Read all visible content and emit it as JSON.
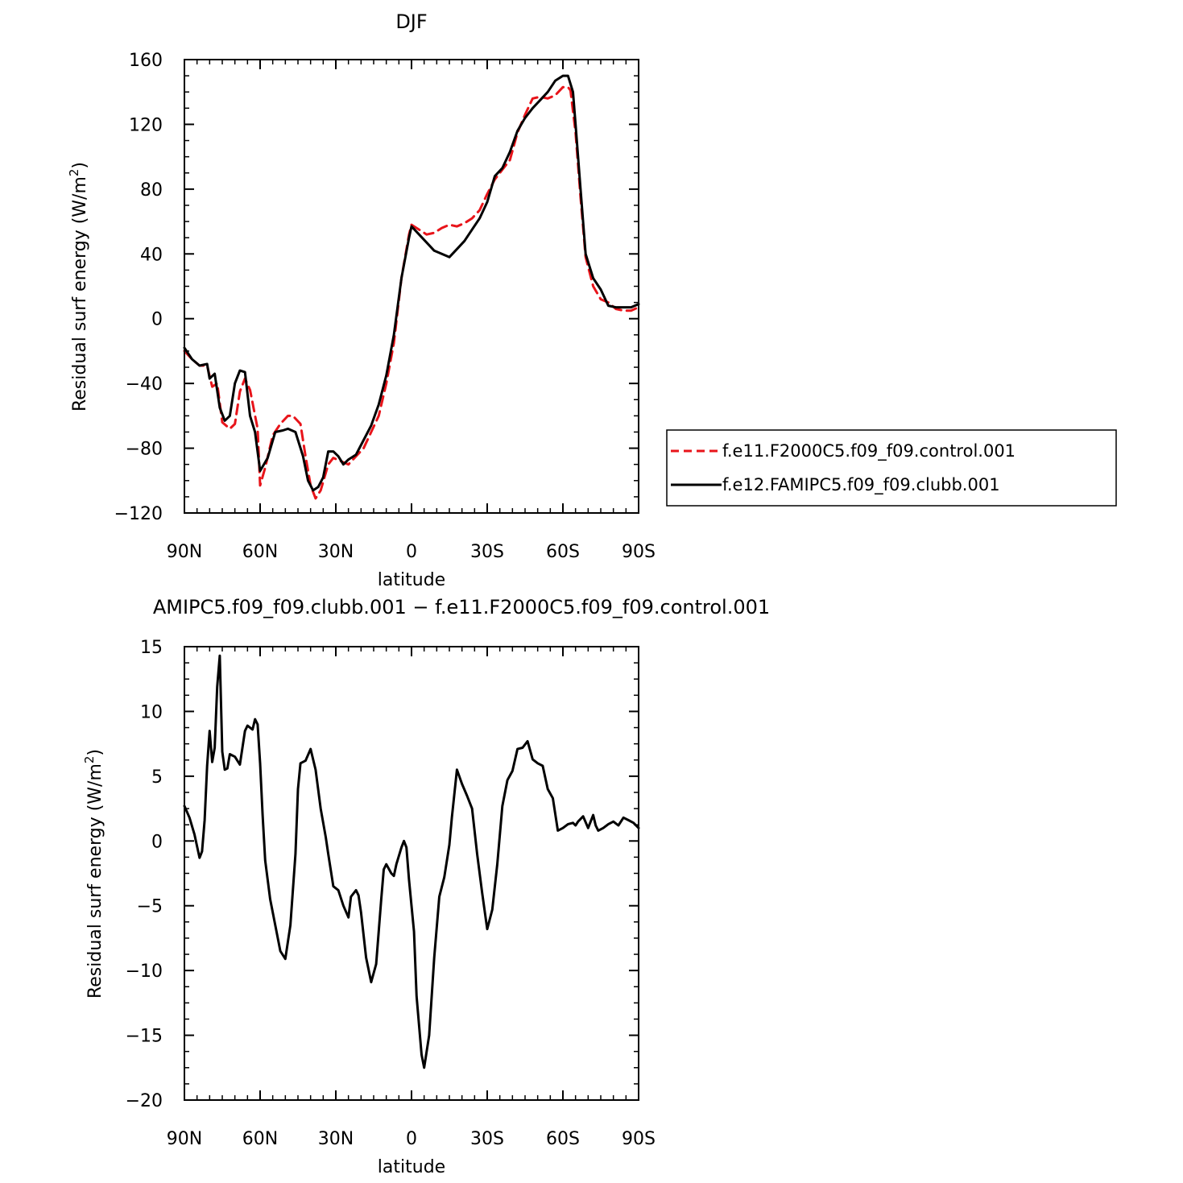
{
  "colors": {
    "control": "#e8141a",
    "clubb": "#000000"
  },
  "chart_data": [
    {
      "type": "line",
      "title": "DJF",
      "xlabel": "latitude",
      "ylabel": "Residual surf energy (W/m²)",
      "ylabel_main": "Residual surf energy (W/m",
      "ylabel_sup": "2",
      "ylabel_tail": ")",
      "xlim": [
        -90,
        90
      ],
      "ylim": [
        -120,
        160
      ],
      "xticks": [
        {
          "v": -90,
          "label": "90N"
        },
        {
          "v": -60,
          "label": "60N"
        },
        {
          "v": -30,
          "label": "30N"
        },
        {
          "v": 0,
          "label": "0"
        },
        {
          "v": 30,
          "label": "30S"
        },
        {
          "v": 60,
          "label": "60S"
        },
        {
          "v": 90,
          "label": "90S"
        }
      ],
      "yticks": [
        {
          "v": -120,
          "label": "−120"
        },
        {
          "v": -80,
          "label": "−80"
        },
        {
          "v": -40,
          "label": "−40"
        },
        {
          "v": 0,
          "label": "0"
        },
        {
          "v": 40,
          "label": "40"
        },
        {
          "v": 80,
          "label": "80"
        },
        {
          "v": 120,
          "label": "120"
        },
        {
          "v": 160,
          "label": "160"
        }
      ],
      "legend_position": "right",
      "series": [
        {
          "name": "f.e11.F2000C5.f09_f09.control.001",
          "style": "dashed",
          "colorKey": "control",
          "x": [
            -90,
            -87,
            -84,
            -81,
            -79,
            -77,
            -75,
            -72,
            -70,
            -68,
            -66,
            -64,
            -61,
            -60,
            -58,
            -55,
            -52,
            -49,
            -47,
            -44,
            -42,
            -40,
            -38,
            -36,
            -33,
            -31,
            -28,
            -25,
            -22,
            -19,
            -16,
            -13,
            -10,
            -7,
            -4,
            -1,
            0,
            3,
            6,
            9,
            12,
            15,
            18,
            21,
            24,
            27,
            30,
            33,
            36,
            39,
            42,
            45,
            48,
            51,
            54,
            57,
            60,
            62,
            63,
            65,
            67,
            69,
            72,
            75,
            78,
            81,
            84,
            87,
            90
          ],
          "y": [
            -20,
            -25,
            -29,
            -29,
            -42,
            -40,
            -64,
            -68,
            -65,
            -45,
            -37,
            -44,
            -68,
            -103,
            -92,
            -72,
            -65,
            -60,
            -60,
            -65,
            -85,
            -103,
            -111,
            -106,
            -90,
            -86,
            -88,
            -90,
            -85,
            -80,
            -70,
            -60,
            -40,
            -15,
            25,
            52,
            58,
            55,
            52,
            53,
            56,
            58,
            57,
            59,
            62,
            67,
            77,
            86,
            92,
            98,
            115,
            126,
            136,
            137,
            136,
            138,
            143,
            143,
            141,
            115,
            75,
            38,
            20,
            12,
            10,
            6,
            5,
            5,
            7
          ]
        },
        {
          "name": "f.e12.FAMIPC5.f09_f09.clubb.001",
          "style": "solid",
          "colorKey": "clubb",
          "x": [
            -90,
            -87,
            -84,
            -81,
            -80,
            -78,
            -76,
            -74,
            -72,
            -70,
            -68,
            -66,
            -64,
            -62,
            -60,
            -57,
            -54,
            -51,
            -49,
            -46,
            -43,
            -41,
            -39,
            -37,
            -35,
            -33,
            -31,
            -29,
            -27,
            -25,
            -22,
            -19,
            -16,
            -13,
            -10,
            -7,
            -4,
            -1,
            0,
            3,
            6,
            9,
            12,
            15,
            18,
            21,
            24,
            27,
            30,
            33,
            36,
            39,
            42,
            45,
            48,
            51,
            54,
            57,
            60,
            62,
            64,
            65,
            67,
            69,
            72,
            75,
            78,
            81,
            84,
            87,
            90
          ],
          "y": [
            -18,
            -25,
            -29,
            -28,
            -37,
            -34,
            -55,
            -63,
            -60,
            -40,
            -32,
            -33,
            -60,
            -70,
            -94,
            -86,
            -70,
            -69,
            -68,
            -70,
            -85,
            -100,
            -106,
            -104,
            -98,
            -82,
            -82,
            -85,
            -90,
            -87,
            -84,
            -75,
            -66,
            -53,
            -35,
            -10,
            25,
            50,
            57,
            52,
            47,
            42,
            40,
            38,
            43,
            48,
            55,
            62,
            72,
            88,
            93,
            103,
            116,
            124,
            130,
            135,
            140,
            147,
            150,
            150,
            140,
            120,
            80,
            40,
            25,
            18,
            8,
            7,
            7,
            7,
            9
          ]
        }
      ]
    },
    {
      "type": "line",
      "title": "AMIPC5.f09_f09.clubb.001 − f.e11.F2000C5.f09_f09.control.001",
      "xlabel": "latitude",
      "ylabel": "Residual surf energy (W/m²)",
      "ylabel_main": "Residual surf energy (W/m",
      "ylabel_sup": "2",
      "ylabel_tail": ")",
      "xlim": [
        -90,
        90
      ],
      "ylim": [
        -20,
        15
      ],
      "xticks": [
        {
          "v": -90,
          "label": "90N"
        },
        {
          "v": -60,
          "label": "60N"
        },
        {
          "v": -30,
          "label": "30N"
        },
        {
          "v": 0,
          "label": "0"
        },
        {
          "v": 30,
          "label": "30S"
        },
        {
          "v": 60,
          "label": "60S"
        },
        {
          "v": 90,
          "label": "90S"
        }
      ],
      "yticks": [
        {
          "v": -20,
          "label": "−20"
        },
        {
          "v": -15,
          "label": "−15"
        },
        {
          "v": -10,
          "label": "−10"
        },
        {
          "v": -5,
          "label": "−5"
        },
        {
          "v": 0,
          "label": "0"
        },
        {
          "v": 5,
          "label": "5"
        },
        {
          "v": 10,
          "label": "10"
        },
        {
          "v": 15,
          "label": "15"
        }
      ],
      "series": [
        {
          "name": "",
          "style": "solid",
          "colorKey": "clubb",
          "x": [
            -90,
            -88,
            -86,
            -84,
            -83,
            -82,
            -81,
            -80,
            -79,
            -78,
            -77,
            -76,
            -75,
            -74,
            -73,
            -72,
            -70,
            -68,
            -66,
            -65,
            -63,
            -62,
            -61,
            -60,
            -59,
            -58,
            -56,
            -54,
            -52,
            -50,
            -48,
            -46,
            -45,
            -44,
            -42,
            -40,
            -38,
            -36,
            -34,
            -33,
            -31,
            -29,
            -27,
            -25,
            -24,
            -22,
            -21,
            -20,
            -18,
            -16,
            -14,
            -12,
            -11,
            -10,
            -8,
            -7,
            -6,
            -4,
            -3,
            -2,
            -1,
            1,
            2,
            4,
            5,
            7,
            9,
            11,
            13,
            15,
            16,
            18,
            20,
            22,
            24,
            26,
            28,
            30,
            32,
            34,
            36,
            38,
            40,
            42,
            44,
            46,
            48,
            50,
            52,
            54,
            56,
            58,
            60,
            62,
            64,
            65,
            66,
            68,
            70,
            72,
            73,
            74,
            76,
            78,
            80,
            82,
            84,
            86,
            88,
            90
          ],
          "y": [
            2.7,
            1.8,
            0.5,
            -1.3,
            -0.8,
            1.6,
            5.8,
            8.5,
            6.1,
            7.2,
            11.9,
            14.3,
            6.9,
            5.5,
            5.6,
            6.7,
            6.5,
            5.9,
            8.5,
            8.9,
            8.6,
            9.4,
            9.0,
            6.0,
            2.0,
            -1.5,
            -4.5,
            -6.5,
            -8.5,
            -9.1,
            -6.5,
            -1.0,
            4.0,
            6.0,
            6.2,
            7.1,
            5.5,
            2.5,
            0.3,
            -1.0,
            -3.5,
            -3.8,
            -5.0,
            -5.9,
            -4.3,
            -3.8,
            -4.2,
            -5.5,
            -9.0,
            -10.9,
            -9.5,
            -4.5,
            -2.2,
            -1.8,
            -2.5,
            -2.7,
            -1.8,
            -0.5,
            0.0,
            -0.5,
            -3.0,
            -7.0,
            -12.0,
            -16.5,
            -17.5,
            -15.0,
            -9.0,
            -4.3,
            -2.8,
            -0.3,
            1.8,
            5.5,
            4.4,
            3.5,
            2.5,
            -1.0,
            -4.0,
            -6.8,
            -5.3,
            -1.8,
            2.7,
            4.7,
            5.4,
            7.1,
            7.2,
            7.7,
            6.3,
            6.0,
            5.8,
            4.0,
            3.3,
            0.8,
            1.0,
            1.3,
            1.4,
            1.2,
            1.5,
            1.9,
            1.0,
            2.0,
            1.2,
            0.8,
            1.0,
            1.3,
            1.5,
            1.2,
            1.8,
            1.6,
            1.4,
            1.0
          ]
        }
      ]
    }
  ]
}
